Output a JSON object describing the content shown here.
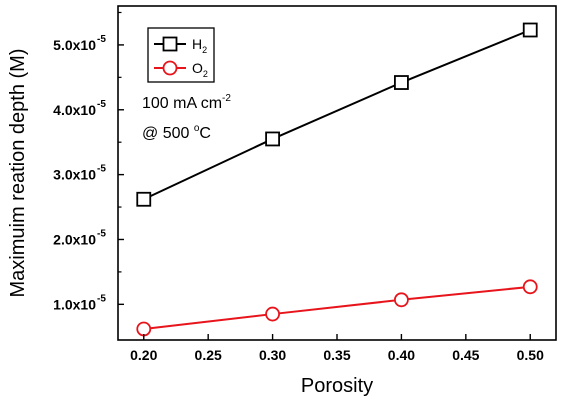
{
  "chart_data": {
    "type": "line",
    "xlabel": "Porosity",
    "ylabel": "Maximuim reation depth (M)",
    "xlim": [
      0.18,
      0.52
    ],
    "ylim": [
      4.5e-06,
      5.6e-05
    ],
    "x_ticks": [
      0.2,
      0.25,
      0.3,
      0.35,
      0.4,
      0.45,
      0.5
    ],
    "x_tick_labels": [
      "0.20",
      "0.25",
      "0.30",
      "0.35",
      "0.40",
      "0.45",
      "0.50"
    ],
    "y_ticks": [
      1e-05,
      2e-05,
      3e-05,
      4e-05,
      5e-05
    ],
    "y_tick_mantissas": [
      "1.0x10",
      "2.0x10",
      "3.0x10",
      "4.0x10",
      "5.0x10"
    ],
    "y_tick_exponent": "-5",
    "x": [
      0.2,
      0.3,
      0.4,
      0.5
    ],
    "series": [
      {
        "name_base": "H",
        "name_sub": "2",
        "marker": "square",
        "color": "#000000",
        "values": [
          2.62e-05,
          3.55e-05,
          4.42e-05,
          5.23e-05
        ]
      },
      {
        "name_base": "O",
        "name_sub": "2",
        "marker": "circle",
        "color": "#e8141b",
        "values": [
          6.2e-06,
          8.5e-06,
          1.07e-05,
          1.27e-05
        ]
      }
    ],
    "legend_position": "top-left",
    "annotations": {
      "line1_main": "100 mA cm",
      "line1_sup": "-2",
      "line2_pre": "@ 500 ",
      "line2_sup": "o",
      "line2_post": "C"
    }
  }
}
